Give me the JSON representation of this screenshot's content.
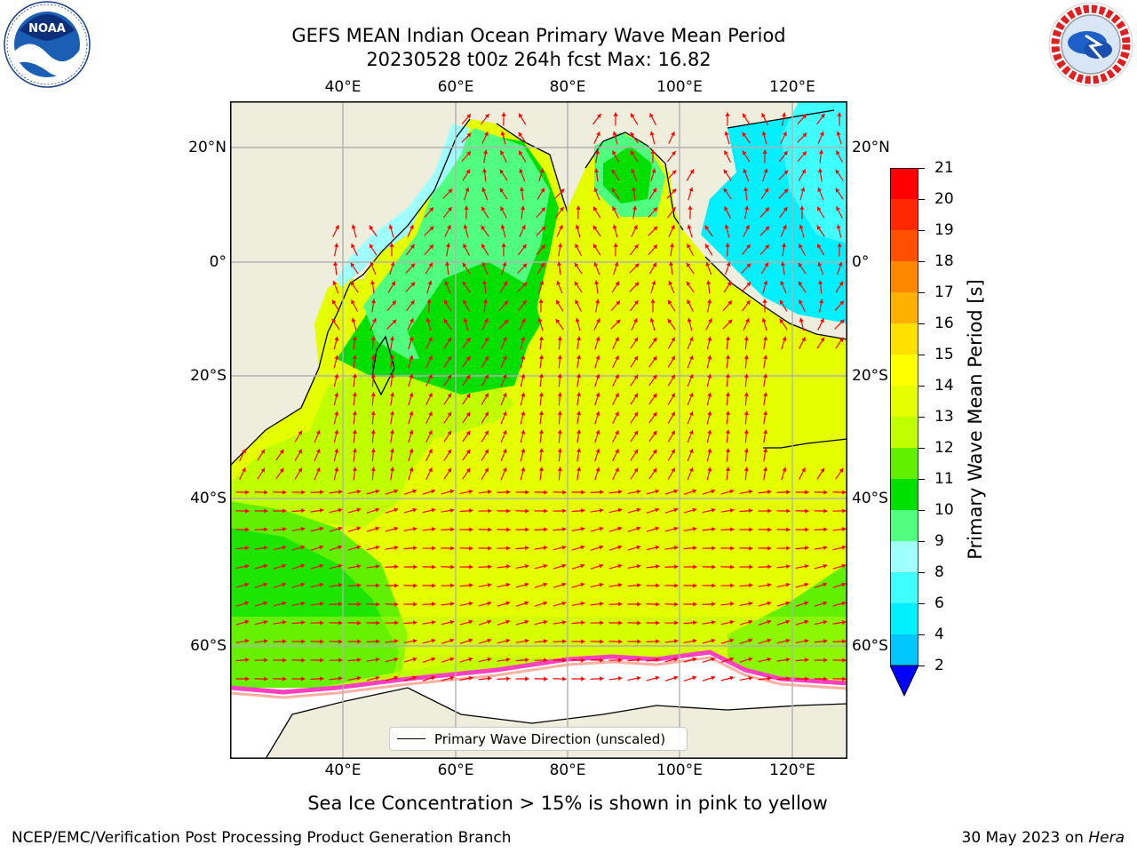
{
  "header": {
    "title_line1": "GEFS MEAN Indian Ocean Primary Wave Mean Period",
    "title_line2": "20230528 t00z 264h fcst   Max: 16.82"
  },
  "axes": {
    "lon_ticks": [
      "40°E",
      "60°E",
      "80°E",
      "100°E",
      "120°E"
    ],
    "lat_ticks": [
      "20°N",
      "0°",
      "20°S",
      "40°S",
      "60°S"
    ]
  },
  "legend": {
    "label": "Primary Wave Direction (unscaled)"
  },
  "colorbar": {
    "label": "Primary Wave Mean Period [s]",
    "ticks": [
      "2",
      "4",
      "6",
      "8",
      "9",
      "10",
      "11",
      "12",
      "13",
      "14",
      "15",
      "16",
      "17",
      "18",
      "19",
      "20",
      "21"
    ],
    "colors": [
      "#0060ff",
      "#00c8ff",
      "#00f0ff",
      "#40ffff",
      "#a0ffff",
      "#50ff80",
      "#00e000",
      "#60f000",
      "#c0ff00",
      "#e6ff00",
      "#ffff00",
      "#ffe000",
      "#ffb000",
      "#ff8800",
      "#ff5000",
      "#ff2800",
      "#ff0000"
    ],
    "under_color": "#0000ff"
  },
  "ice_note": "Sea Ice Concentration > 15% is shown in pink to yellow",
  "footer": {
    "left": "NCEP/EMC/Verification Post Processing Product Generation Branch",
    "right_prefix": "30 May 2023 on ",
    "right_host": "Hera"
  },
  "colors": {
    "land": "#efeddc",
    "ice_shelf": "#ffffff",
    "arrow": "#ff0000",
    "grid": "#b0b0b0"
  },
  "icons": [
    "noaa-logo",
    "nws-logo"
  ]
}
